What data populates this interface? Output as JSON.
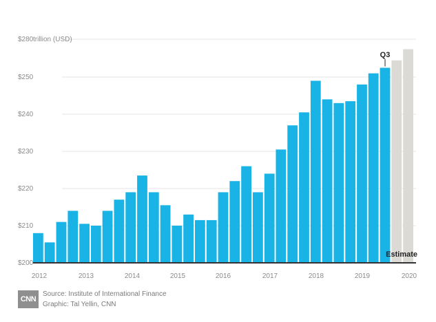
{
  "chart_data": {
    "type": "bar",
    "y_unit_label": "trillion (USD)",
    "ylim": [
      200,
      280
    ],
    "y_ticks": [
      "$280",
      "$250",
      "$240",
      "$230",
      "$220",
      "$210",
      "$200"
    ],
    "y_tick_values": [
      280,
      250,
      240,
      230,
      220,
      210,
      200
    ],
    "x_labels": [
      "2012",
      "2013",
      "2014",
      "2015",
      "2016",
      "2017",
      "2018",
      "2019",
      "2020"
    ],
    "series": [
      {
        "values": [
          208,
          205.5,
          211,
          214,
          210.5,
          210,
          214,
          217,
          219,
          223.5,
          219,
          215.5,
          210,
          213,
          211.5,
          211.5,
          219,
          222,
          226,
          219,
          224,
          230.5,
          237,
          240.5,
          249,
          244,
          243,
          243.5,
          248,
          251,
          252.5
        ],
        "color": "#1ab3e6"
      },
      {
        "values": [
          254.5,
          257.5
        ],
        "color": "#dcdad5"
      }
    ],
    "annotations": {
      "latest_label": "Q3",
      "estimate_label": "Estimate"
    },
    "grid": true
  },
  "footer": {
    "logo": "CNN",
    "source": "Source: Institute of International Finance",
    "graphic": "Graphic: Tal Yellin, CNN"
  },
  "colors": {
    "bar": "#1ab3e6",
    "estimate": "#dcdad5",
    "axis": "#333333",
    "grid": "#e6e6e6",
    "text": "#8a8a8a"
  }
}
